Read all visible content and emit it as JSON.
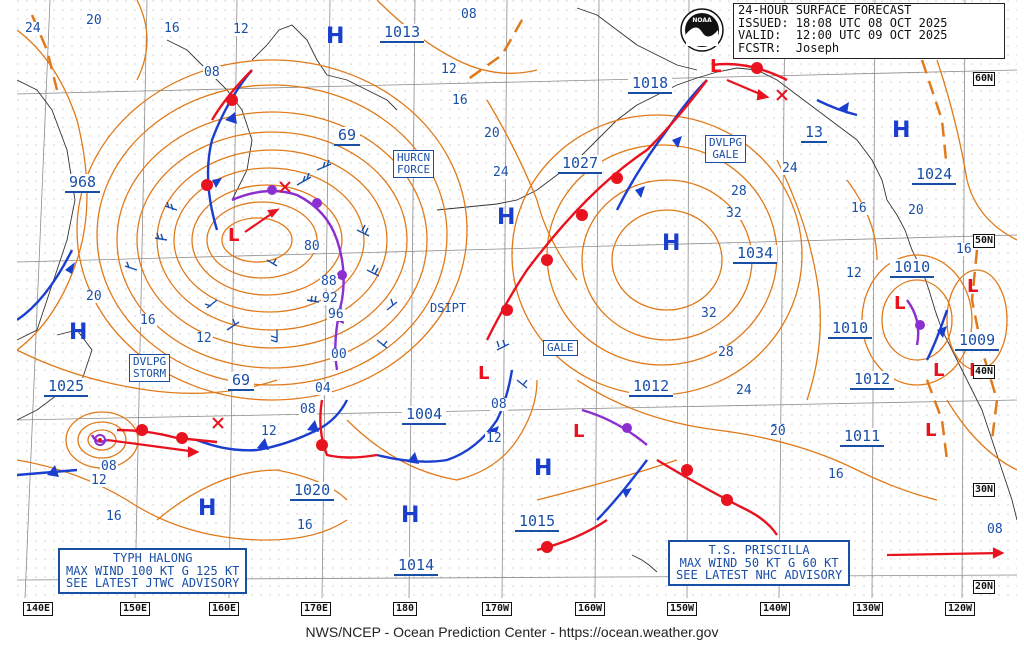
{
  "title_block": {
    "lines": [
      "24-HOUR SURFACE FORECAST",
      "ISSUED: 18:08 UTC 08 OCT 2025",
      "VALID:  12:00 UTC 09 OCT 2025",
      "FCSTR:  Joseph"
    ],
    "logo_text": "NOAA"
  },
  "footer": "NWS/NCEP - Ocean Prediction Center - https://ocean.weather.gov",
  "longitude_labels": [
    "140E",
    "150E",
    "160E",
    "170E",
    "180",
    "170W",
    "160W",
    "150W",
    "140W",
    "130W",
    "120W"
  ],
  "latitude_labels": [
    "60N",
    "50N",
    "40N",
    "30N",
    "20N"
  ],
  "pressure_centers": {
    "highs": [
      "H",
      "H",
      "H",
      "H",
      "H",
      "H",
      "H",
      "H",
      "H"
    ],
    "lows": [
      "L",
      "L",
      "L",
      "L",
      "L",
      "L",
      "L",
      "L",
      "L"
    ],
    "values": [
      "1013",
      "69",
      "968",
      "1025",
      "69",
      "1004",
      "1020",
      "1014",
      "1027",
      "1018",
      "13",
      "1034",
      "1012",
      "1024",
      "1010",
      "1010",
      "1009",
      "1012",
      "1011",
      "1015"
    ]
  },
  "isobar_labels": [
    "24",
    "20",
    "16",
    "12",
    "08",
    "08",
    "12",
    "16",
    "20",
    "24",
    "28",
    "32",
    "32",
    "28",
    "24",
    "20",
    "16",
    "12",
    "80",
    "88",
    "92",
    "96",
    "00",
    "04",
    "08",
    "12",
    "16",
    "20",
    "16",
    "12",
    "08",
    "12",
    "08",
    "16",
    "20",
    "16",
    "16",
    "12",
    "08",
    "20",
    "24",
    "12"
  ],
  "warnings": [
    {
      "text": "HURCN\nFORCE"
    },
    {
      "text": "DVLPG\nGALE"
    },
    {
      "text": "DVLPG\nSTORM"
    },
    {
      "text": "GALE"
    },
    {
      "text": "DSIPT"
    }
  ],
  "advisories": {
    "halong": [
      "TYPH HALONG",
      "MAX WIND 100 KT G 125 KT",
      "SEE LATEST JTWC ADVISORY"
    ],
    "priscilla": [
      "T.S. PRISCILLA",
      "MAX WIND 50 KT G 60 KT",
      "SEE LATEST NHC ADVISORY"
    ]
  },
  "colors": {
    "isobar": "#e07a1a",
    "label_blue": "#1a4fa8",
    "cold_front": "#1a3fcf",
    "warm_front": "#e8131f",
    "occluded_front": "#8b2fd0",
    "low_marker": "#e8131f",
    "high_marker": "#1a3fcf",
    "grid": "#9a9a9a",
    "coast": "#333333"
  }
}
